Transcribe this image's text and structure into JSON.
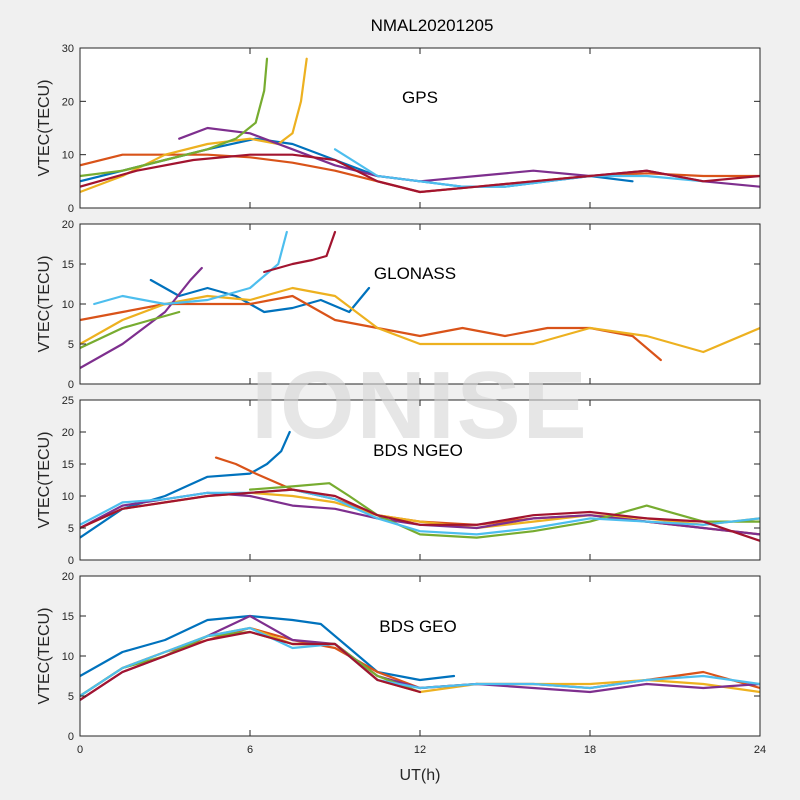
{
  "figure": {
    "title": "NMAL20201205",
    "watermark": "IONISE",
    "xlabel": "UT(h)"
  },
  "colors": [
    "#0072bd",
    "#d95319",
    "#edb120",
    "#7e2f8e",
    "#77ac30",
    "#4dbeee",
    "#a2142f"
  ],
  "chart_data": [
    {
      "type": "line",
      "title": "GPS",
      "ylabel": "VTEC(TECU)",
      "xlim": [
        0,
        24
      ],
      "ylim": [
        0,
        30
      ],
      "xticks": [
        0,
        6,
        12,
        18,
        24
      ],
      "yticks": [
        0,
        10,
        20,
        30
      ],
      "grid": false,
      "series": [
        {
          "x": [
            0,
            1.5,
            3,
            4.5,
            6.2,
            7.5,
            9,
            10.5,
            12,
            13.5,
            15,
            16.5,
            18,
            19.5
          ],
          "y": [
            5,
            7,
            9,
            11,
            13,
            12,
            9,
            6,
            5,
            4,
            4,
            5,
            6,
            5
          ]
        },
        {
          "x": [
            0,
            1.5,
            3,
            4.5,
            6,
            7.5,
            9,
            10.5,
            12,
            14,
            16,
            18,
            20,
            22,
            24
          ],
          "y": [
            8,
            10,
            10,
            10,
            9.5,
            8.5,
            7,
            5,
            3,
            4,
            5,
            6,
            6.5,
            6,
            6
          ]
        },
        {
          "x": [
            0,
            1.5,
            3,
            4.5,
            6,
            7,
            7.5,
            7.8,
            8.0
          ],
          "y": [
            3,
            6,
            10,
            12,
            13,
            12,
            14,
            20,
            28
          ]
        },
        {
          "x": [
            3.5,
            4.5,
            6,
            7.5,
            9,
            10.5,
            12,
            14,
            16,
            18,
            20,
            22,
            24
          ],
          "y": [
            13,
            15,
            14,
            11,
            8,
            6,
            5,
            6,
            7,
            6,
            7,
            5,
            4
          ]
        },
        {
          "x": [
            0,
            1.5,
            3,
            4.5,
            5.5,
            6.2,
            6.5,
            6.6
          ],
          "y": [
            6,
            7,
            9,
            11,
            13,
            16,
            22,
            28
          ]
        },
        {
          "x": [
            9,
            10.5,
            12,
            13.5,
            15,
            16.5,
            18,
            20,
            22
          ],
          "y": [
            11,
            6,
            5,
            4,
            4,
            5,
            6,
            6,
            5
          ]
        },
        {
          "x": [
            0,
            2,
            4,
            6,
            7.5,
            9,
            10.5,
            12,
            14,
            16,
            18,
            20,
            22,
            24
          ],
          "y": [
            4,
            7,
            9,
            10,
            10,
            9,
            5,
            3,
            4,
            5,
            6,
            7,
            5,
            6
          ]
        }
      ]
    },
    {
      "type": "line",
      "title": "GLONASS",
      "ylabel": "VTEC(TECU)",
      "xlim": [
        0,
        24
      ],
      "ylim": [
        0,
        20
      ],
      "xticks": [
        0,
        6,
        12,
        18,
        24
      ],
      "yticks": [
        0,
        5,
        10,
        15,
        20
      ],
      "grid": false,
      "series": [
        {
          "x": [
            2.5,
            3.5,
            4.5,
            5.5,
            6.5,
            7.5,
            8.5,
            9.5,
            10.2
          ],
          "y": [
            13,
            11,
            12,
            11,
            9,
            9.5,
            10.5,
            9,
            12
          ]
        },
        {
          "x": [
            0,
            1.5,
            3,
            4.5,
            6,
            7.5,
            9,
            10.5,
            12,
            13.5,
            15,
            16.5,
            18,
            19.5,
            20.5
          ],
          "y": [
            8,
            9,
            10,
            10,
            10,
            11,
            8,
            7,
            6,
            7,
            6,
            7,
            7,
            6,
            3
          ]
        },
        {
          "x": [
            0,
            1.5,
            3,
            4.5,
            6,
            7.5,
            9,
            10.5,
            12,
            14,
            16,
            18,
            20,
            22,
            24
          ],
          "y": [
            5,
            8,
            10,
            11,
            10.5,
            12,
            11,
            7,
            5,
            5,
            5,
            7,
            6,
            4,
            7
          ]
        },
        {
          "x": [
            0,
            1.5,
            3,
            3.9,
            4.3
          ],
          "y": [
            2,
            5,
            9,
            13,
            14.5
          ]
        },
        {
          "x": [
            0,
            1.5,
            2.5,
            3.5
          ],
          "y": [
            4.5,
            7,
            8,
            9
          ]
        },
        {
          "x": [
            0.5,
            1.5,
            3,
            4.5,
            6,
            7,
            7.3
          ],
          "y": [
            10,
            11,
            10,
            10.5,
            12,
            15,
            19
          ]
        },
        {
          "x": [
            6.5,
            7.5,
            8.2,
            8.7,
            9.0
          ],
          "y": [
            14,
            15,
            15.5,
            16,
            19
          ]
        }
      ]
    },
    {
      "type": "line",
      "title": "BDS NGEO",
      "ylabel": "VTEC(TECU)",
      "xlim": [
        0,
        24
      ],
      "ylim": [
        0,
        25
      ],
      "xticks": [
        0,
        6,
        12,
        18,
        24
      ],
      "yticks": [
        0,
        5,
        10,
        15,
        20,
        25
      ],
      "grid": false,
      "series": [
        {
          "x": [
            0,
            1.5,
            3,
            4.5,
            6,
            6.6,
            7.1,
            7.4
          ],
          "y": [
            3.5,
            8,
            10,
            13,
            13.5,
            15,
            17,
            20
          ]
        },
        {
          "x": [
            4.8,
            5.5,
            6.2,
            7.5,
            9,
            10.5,
            12,
            14,
            16,
            18,
            20,
            22,
            24
          ],
          "y": [
            16,
            15,
            13.5,
            11,
            9.5,
            7,
            6,
            5.5,
            6.5,
            7,
            6,
            5,
            4
          ]
        },
        {
          "x": [
            0,
            1.5,
            3,
            4.5,
            6,
            7.5,
            9,
            10.5,
            12,
            14,
            16,
            18,
            20,
            22,
            24
          ],
          "y": [
            5,
            8,
            9,
            10,
            10.5,
            10,
            9,
            7,
            6,
            5,
            6,
            7,
            6.5,
            5.5,
            6.5
          ]
        },
        {
          "x": [
            0,
            1.5,
            3,
            4.5,
            6,
            7.5,
            9,
            10.5,
            12,
            14,
            16,
            18,
            20,
            22,
            24
          ],
          "y": [
            5,
            8.5,
            9.5,
            10.5,
            10,
            8.5,
            8,
            6.5,
            5.5,
            5,
            6.5,
            7,
            6,
            5,
            4
          ]
        },
        {
          "x": [
            6,
            7.5,
            8.8,
            9.5,
            10.5,
            12,
            14,
            16,
            18,
            20,
            22,
            24
          ],
          "y": [
            11,
            11.5,
            12,
            10,
            7,
            4,
            3.5,
            4.5,
            6,
            8.5,
            6,
            6
          ]
        },
        {
          "x": [
            0,
            1.5,
            3,
            4.5,
            6,
            7.5,
            9,
            10.5,
            12,
            14,
            16,
            18,
            20,
            22,
            24
          ],
          "y": [
            5.5,
            9,
            9.5,
            10.5,
            10.5,
            11,
            9.5,
            6.5,
            4.5,
            4,
            5,
            6.5,
            6,
            5.5,
            6.5
          ]
        },
        {
          "x": [
            0,
            1.5,
            3,
            4.5,
            6,
            7.5,
            9,
            10.5,
            12,
            14,
            16,
            18,
            20,
            22,
            24
          ],
          "y": [
            5,
            8,
            9,
            10,
            10.5,
            11,
            10,
            7,
            5.5,
            5.5,
            7,
            7.5,
            6.5,
            6,
            3
          ]
        }
      ]
    },
    {
      "type": "line",
      "title": "BDS GEO",
      "ylabel": "VTEC(TECU)",
      "xlim": [
        0,
        24
      ],
      "ylim": [
        0,
        20
      ],
      "xticks": [
        0,
        6,
        12,
        18,
        24
      ],
      "yticks": [
        0,
        5,
        10,
        15,
        20
      ],
      "grid": false,
      "series": [
        {
          "x": [
            0,
            1.5,
            3,
            4.5,
            6,
            7.5,
            8.5,
            9.5,
            10.5,
            12,
            13.2
          ],
          "y": [
            7.5,
            10.5,
            12,
            14.5,
            15,
            14.5,
            14,
            11,
            8,
            7,
            7.5
          ]
        },
        {
          "x": [
            0,
            1.5,
            3,
            4.5,
            6,
            7.5,
            9,
            10.5,
            12,
            14,
            16,
            18,
            20,
            22,
            24
          ],
          "y": [
            5,
            8.5,
            10.5,
            12,
            13.5,
            12,
            11,
            8,
            6,
            6.5,
            6.5,
            6,
            7,
            8,
            6
          ]
        },
        {
          "x": [
            0,
            1.5,
            3,
            4.5,
            6,
            7.5,
            9,
            10.5,
            12,
            14,
            16,
            18,
            20,
            22,
            24
          ],
          "y": [
            5,
            8.5,
            10.5,
            12.5,
            13.5,
            11.5,
            11.5,
            7,
            5.5,
            6.5,
            6.5,
            6.5,
            7,
            6.5,
            5.5
          ]
        },
        {
          "x": [
            0,
            1.5,
            3,
            4.5,
            6,
            7.5,
            9,
            10.5,
            12,
            14,
            16,
            18,
            20,
            22,
            24
          ],
          "y": [
            4.5,
            8,
            10,
            12.5,
            15,
            12,
            11.5,
            7.5,
            6,
            6.5,
            6,
            5.5,
            6.5,
            6,
            6.5
          ]
        },
        {
          "x": [
            0,
            1.5,
            3,
            4.5,
            6,
            7.5,
            9,
            10.5,
            12
          ],
          "y": [
            5,
            8.5,
            10,
            12.5,
            13,
            11.5,
            11.5,
            7.5,
            5.5
          ]
        },
        {
          "x": [
            0,
            1.5,
            3,
            4.5,
            6,
            7.5,
            9,
            10.5,
            12,
            14,
            16,
            18,
            20,
            22,
            24
          ],
          "y": [
            5,
            8.5,
            10.5,
            12.5,
            13.5,
            11,
            11.5,
            7,
            6,
            6.5,
            6.5,
            6,
            7,
            7.5,
            6.5
          ]
        },
        {
          "x": [
            0,
            1.5,
            3,
            4.5,
            6,
            7.5,
            9,
            10.5,
            12
          ],
          "y": [
            4.5,
            8,
            10,
            12,
            13,
            11.5,
            11.5,
            7,
            5.5
          ]
        }
      ]
    }
  ]
}
